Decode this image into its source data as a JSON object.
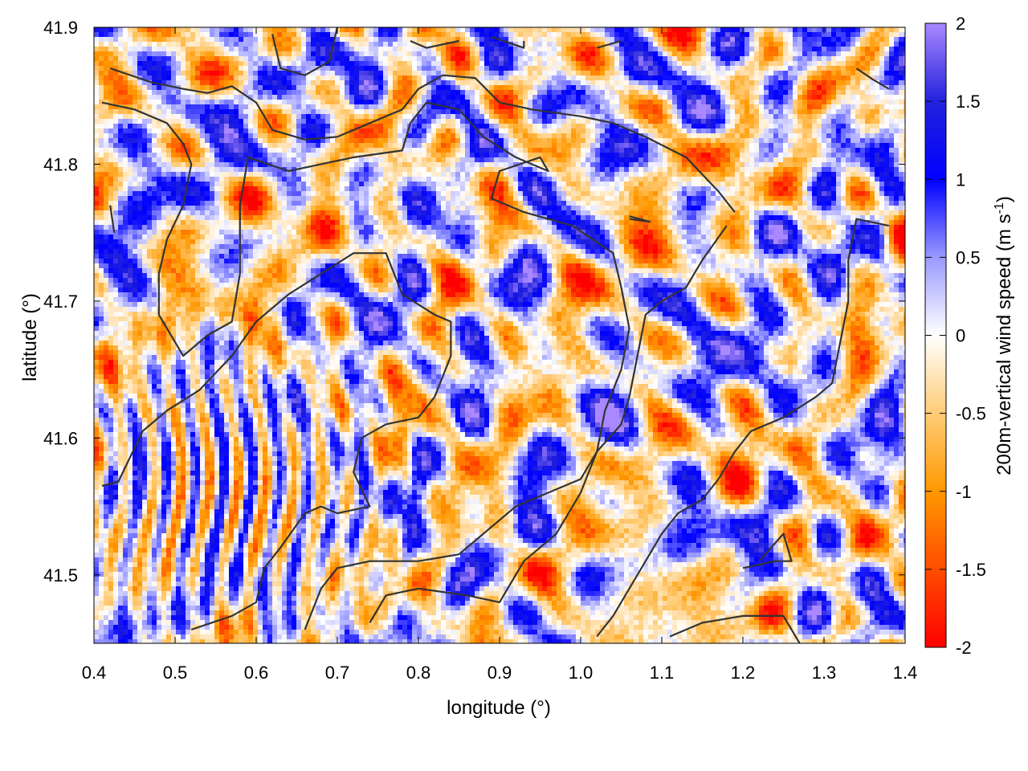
{
  "chart_data": {
    "type": "heatmap",
    "title": "",
    "xlabel": "longitude (°)",
    "ylabel": "latitude (°)",
    "colorbar_label": "200m-vertical wind speed (m s",
    "colorbar_label_sup": "-1",
    "colorbar_label_end": ")",
    "xlim": [
      0.4,
      1.4
    ],
    "ylim": [
      41.45,
      41.9
    ],
    "x_ticks": [
      0.4,
      0.5,
      0.6,
      0.7,
      0.8,
      0.9,
      1.0,
      1.1,
      1.2,
      1.3,
      1.4
    ],
    "x_tick_labels": [
      "0.4",
      "0.5",
      "0.6",
      "0.7",
      "0.8",
      "0.9",
      "1.0",
      "1.1",
      "1.2",
      "1.3",
      "1.4"
    ],
    "y_ticks": [
      41.5,
      41.6,
      41.7,
      41.8,
      41.9
    ],
    "y_tick_labels": [
      "41.5",
      "41.6",
      "41.7",
      "41.8",
      "41.9"
    ],
    "color_range": [
      -2,
      2
    ],
    "colorbar_ticks": [
      2,
      1.5,
      1,
      0.5,
      0,
      -0.5,
      -1,
      -1.5,
      -2
    ],
    "colorbar_tick_labels": [
      "2",
      "1.5",
      "1",
      "0.5",
      "0",
      "-0.5",
      "-1",
      "-1.5",
      "-2"
    ],
    "colormap": [
      {
        "value": -2,
        "color": "#ff0000"
      },
      {
        "value": -1,
        "color": "#ff9900"
      },
      {
        "value": -0.5,
        "color": "#ffcc77"
      },
      {
        "value": 0,
        "color": "#ffffff"
      },
      {
        "value": 0.5,
        "color": "#9999ff"
      },
      {
        "value": 1,
        "color": "#0000ff"
      },
      {
        "value": 1.5,
        "color": "#2222dd"
      },
      {
        "value": 2,
        "color": "#aa88ff"
      }
    ],
    "grid": false,
    "contour_color": "#333333",
    "contours": [
      [
        [
          0.42,
          41.87
        ],
        [
          0.47,
          41.86
        ],
        [
          0.51,
          41.855
        ],
        [
          0.54,
          41.852
        ],
        [
          0.57,
          41.857
        ],
        [
          0.6,
          41.845
        ],
        [
          0.62,
          41.825
        ],
        [
          0.66,
          41.818
        ],
        [
          0.7,
          41.82
        ],
        [
          0.74,
          41.83
        ],
        [
          0.78,
          41.84
        ],
        [
          0.8,
          41.855
        ],
        [
          0.83,
          41.865
        ],
        [
          0.87,
          41.863
        ],
        [
          0.9,
          41.845
        ],
        [
          0.94,
          41.84
        ],
        [
          1.0,
          41.835
        ],
        [
          1.04,
          41.83
        ],
        [
          1.08,
          41.82
        ],
        [
          1.13,
          41.805
        ],
        [
          1.17,
          41.78
        ],
        [
          1.19,
          41.765
        ]
      ],
      [
        [
          0.41,
          41.845
        ],
        [
          0.45,
          41.84
        ],
        [
          0.49,
          41.83
        ],
        [
          0.51,
          41.815
        ],
        [
          0.52,
          41.8
        ],
        [
          0.51,
          41.77
        ],
        [
          0.49,
          41.745
        ],
        [
          0.48,
          41.72
        ],
        [
          0.48,
          41.69
        ],
        [
          0.5,
          41.67
        ],
        [
          0.51,
          41.66
        ],
        [
          0.54,
          41.675
        ],
        [
          0.57,
          41.685
        ],
        [
          0.58,
          41.72
        ],
        [
          0.58,
          41.77
        ],
        [
          0.59,
          41.805
        ],
        [
          0.64,
          41.795
        ],
        [
          0.68,
          41.8
        ],
        [
          0.72,
          41.805
        ],
        [
          0.78,
          41.81
        ],
        [
          0.79,
          41.83
        ],
        [
          0.81,
          41.845
        ],
        [
          0.85,
          41.84
        ],
        [
          0.88,
          41.82
        ],
        [
          0.92,
          41.805
        ],
        [
          0.96,
          41.795
        ],
        [
          0.95,
          41.805
        ],
        [
          0.9,
          41.795
        ],
        [
          0.89,
          41.775
        ],
        [
          0.93,
          41.765
        ],
        [
          0.99,
          41.755
        ],
        [
          1.04,
          41.735
        ],
        [
          1.05,
          41.71
        ],
        [
          1.06,
          41.68
        ],
        [
          1.05,
          41.65
        ],
        [
          1.03,
          41.62
        ],
        [
          1.02,
          41.59
        ],
        [
          1.0,
          41.56
        ],
        [
          0.97,
          41.53
        ],
        [
          0.93,
          41.51
        ],
        [
          0.9,
          41.48
        ],
        [
          0.86,
          41.485
        ],
        [
          0.8,
          41.49
        ],
        [
          0.76,
          41.485
        ],
        [
          0.74,
          41.465
        ]
      ],
      [
        [
          0.41,
          41.565
        ],
        [
          0.43,
          41.568
        ],
        [
          0.46,
          41.605
        ],
        [
          0.49,
          41.62
        ],
        [
          0.53,
          41.635
        ],
        [
          0.57,
          41.66
        ],
        [
          0.6,
          41.685
        ],
        [
          0.64,
          41.705
        ],
        [
          0.68,
          41.72
        ],
        [
          0.72,
          41.735
        ],
        [
          0.76,
          41.735
        ],
        [
          0.78,
          41.705
        ],
        [
          0.82,
          41.69
        ],
        [
          0.84,
          41.685
        ],
        [
          0.84,
          41.66
        ],
        [
          0.82,
          41.63
        ],
        [
          0.8,
          41.615
        ],
        [
          0.76,
          41.61
        ],
        [
          0.73,
          41.6
        ],
        [
          0.72,
          41.575
        ],
        [
          0.74,
          41.55
        ],
        [
          0.7,
          41.545
        ],
        [
          0.68,
          41.55
        ],
        [
          0.66,
          41.545
        ],
        [
          0.63,
          41.52
        ],
        [
          0.61,
          41.505
        ],
        [
          0.6,
          41.48
        ],
        [
          0.57,
          41.47
        ],
        [
          0.52,
          41.46
        ]
      ],
      [
        [
          0.66,
          41.46
        ],
        [
          0.68,
          41.49
        ],
        [
          0.7,
          41.505
        ],
        [
          0.74,
          41.51
        ],
        [
          0.8,
          41.51
        ],
        [
          0.85,
          41.515
        ],
        [
          0.88,
          41.53
        ],
        [
          0.92,
          41.55
        ],
        [
          0.96,
          41.56
        ],
        [
          1.0,
          41.57
        ],
        [
          1.02,
          41.59
        ],
        [
          1.05,
          41.61
        ],
        [
          1.06,
          41.63
        ],
        [
          1.07,
          41.66
        ],
        [
          1.08,
          41.69
        ],
        [
          1.1,
          41.7
        ],
        [
          1.13,
          41.71
        ],
        [
          1.15,
          41.73
        ],
        [
          1.18,
          41.755
        ]
      ],
      [
        [
          1.02,
          41.455
        ],
        [
          1.04,
          41.47
        ],
        [
          1.06,
          41.49
        ],
        [
          1.08,
          41.51
        ],
        [
          1.1,
          41.53
        ],
        [
          1.12,
          41.545
        ],
        [
          1.15,
          41.555
        ],
        [
          1.17,
          41.57
        ],
        [
          1.19,
          41.59
        ],
        [
          1.21,
          41.605
        ],
        [
          1.25,
          41.615
        ],
        [
          1.29,
          41.63
        ],
        [
          1.31,
          41.64
        ],
        [
          1.32,
          41.67
        ],
        [
          1.33,
          41.7
        ],
        [
          1.33,
          41.73
        ],
        [
          1.34,
          41.76
        ],
        [
          1.38,
          41.755
        ]
      ],
      [
        [
          1.2,
          41.505
        ],
        [
          1.24,
          41.51
        ],
        [
          1.26,
          41.51
        ],
        [
          1.25,
          41.53
        ],
        [
          1.22,
          41.51
        ]
      ],
      [
        [
          1.11,
          41.455
        ],
        [
          1.15,
          41.465
        ],
        [
          1.2,
          41.47
        ],
        [
          1.25,
          41.47
        ],
        [
          1.27,
          41.45
        ]
      ],
      [
        [
          0.62,
          41.895
        ],
        [
          0.63,
          41.87
        ],
        [
          0.66,
          41.865
        ],
        [
          0.69,
          41.875
        ],
        [
          0.7,
          41.9
        ]
      ],
      [
        [
          0.79,
          41.89
        ],
        [
          0.81,
          41.885
        ],
        [
          0.85,
          41.89
        ]
      ],
      [
        [
          0.89,
          41.893
        ],
        [
          0.93,
          41.885
        ],
        [
          0.93,
          41.89
        ]
      ],
      [
        [
          1.02,
          41.885
        ],
        [
          1.05,
          41.89
        ]
      ],
      [
        [
          1.34,
          41.87
        ],
        [
          1.36,
          41.862
        ],
        [
          1.38,
          41.855
        ]
      ],
      [
        [
          0.42,
          41.77
        ],
        [
          0.425,
          41.75
        ]
      ],
      [
        [
          1.06,
          41.76
        ],
        [
          1.085,
          41.758
        ],
        [
          1.06,
          41.762
        ]
      ]
    ]
  }
}
